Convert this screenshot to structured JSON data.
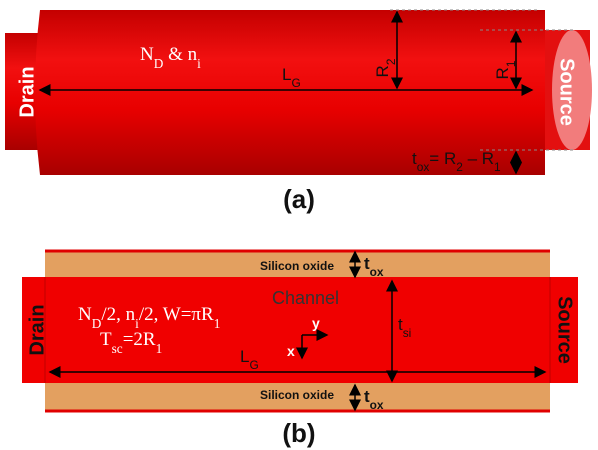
{
  "panel_a": {
    "caption": "(a)",
    "drain": "Drain",
    "source": "Source",
    "doping": [
      "N",
      "D",
      " & n",
      "i"
    ],
    "length": [
      "L",
      "G"
    ],
    "r2": [
      "R",
      "2"
    ],
    "r1": [
      "R",
      "1"
    ],
    "tox": [
      "t",
      "ox",
      "= R",
      "2",
      " – R",
      "1"
    ]
  },
  "panel_b": {
    "caption": "(b)",
    "oxide_top": "Silicon oxide",
    "tox_top": [
      "t",
      "ox"
    ],
    "channel": "Channel",
    "drain": "Drain",
    "source": "Source",
    "doping": [
      "N",
      "D",
      "/2, n",
      "i",
      "/2, W=πR",
      "1"
    ],
    "tsc": [
      "T",
      "sc",
      "=2R",
      "1"
    ],
    "axis_y": "y",
    "axis_x": "x",
    "length": [
      "L",
      "G"
    ],
    "tsi": [
      "t",
      "si"
    ],
    "oxide_bottom": "Silicon oxide",
    "tox_bottom": [
      "t",
      "ox"
    ]
  }
}
